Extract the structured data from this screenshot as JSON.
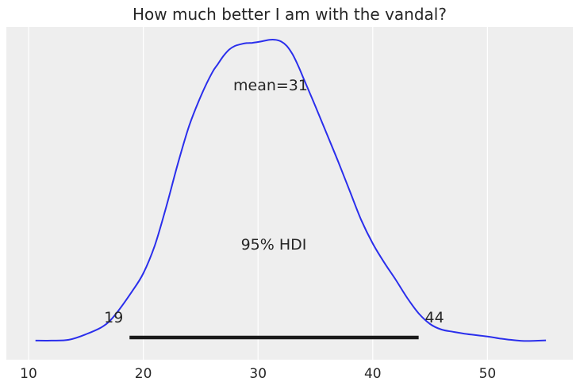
{
  "chart_data": {
    "type": "line",
    "title": "How much better I am with the vandal?",
    "xlabel": "",
    "ylabel": "",
    "xlim": [
      8.5,
      57.5
    ],
    "x_ticks": [
      "10",
      "20",
      "30",
      "40",
      "50"
    ],
    "x_tick_values": [
      10,
      20,
      30,
      40,
      50
    ],
    "grid": true,
    "series": [
      {
        "color": "#2a2eec",
        "x": [
          10.6,
          12.0,
          13.5,
          15.0,
          16.5,
          17.5,
          19.0,
          20.0,
          21.0,
          22.0,
          23.0,
          24.0,
          25.0,
          26.0,
          26.5,
          27.0,
          27.5,
          28.0,
          28.5,
          29.0,
          29.5,
          30.0,
          30.5,
          31.0,
          31.5,
          32.0,
          32.5,
          33.0,
          33.5,
          34.0,
          35.0,
          36.0,
          37.0,
          38.0,
          39.0,
          40.0,
          41.0,
          42.0,
          43.0,
          44.0,
          45.0,
          46.0,
          47.0,
          48.0,
          50.0,
          51.0,
          52.0,
          53.0,
          54.0,
          55.1
        ],
        "y": [
          0.006,
          0.006,
          0.009,
          0.029,
          0.058,
          0.097,
          0.183,
          0.25,
          0.351,
          0.491,
          0.646,
          0.785,
          0.891,
          0.978,
          1.009,
          1.039,
          1.062,
          1.075,
          1.081,
          1.085,
          1.086,
          1.089,
          1.093,
          1.097,
          1.097,
          1.091,
          1.075,
          1.045,
          1.003,
          0.954,
          0.856,
          0.755,
          0.654,
          0.548,
          0.443,
          0.358,
          0.289,
          0.227,
          0.161,
          0.105,
          0.066,
          0.046,
          0.038,
          0.031,
          0.021,
          0.014,
          0.009,
          0.005,
          0.005,
          0.007
        ]
      }
    ],
    "hdi": {
      "low": 18.8,
      "high": 44.0,
      "low_label": "19",
      "high_label": "44",
      "color": "#1a1a1a"
    },
    "annotations": {
      "mean_label": "mean=31",
      "hdi_label": "95% HDI"
    }
  }
}
